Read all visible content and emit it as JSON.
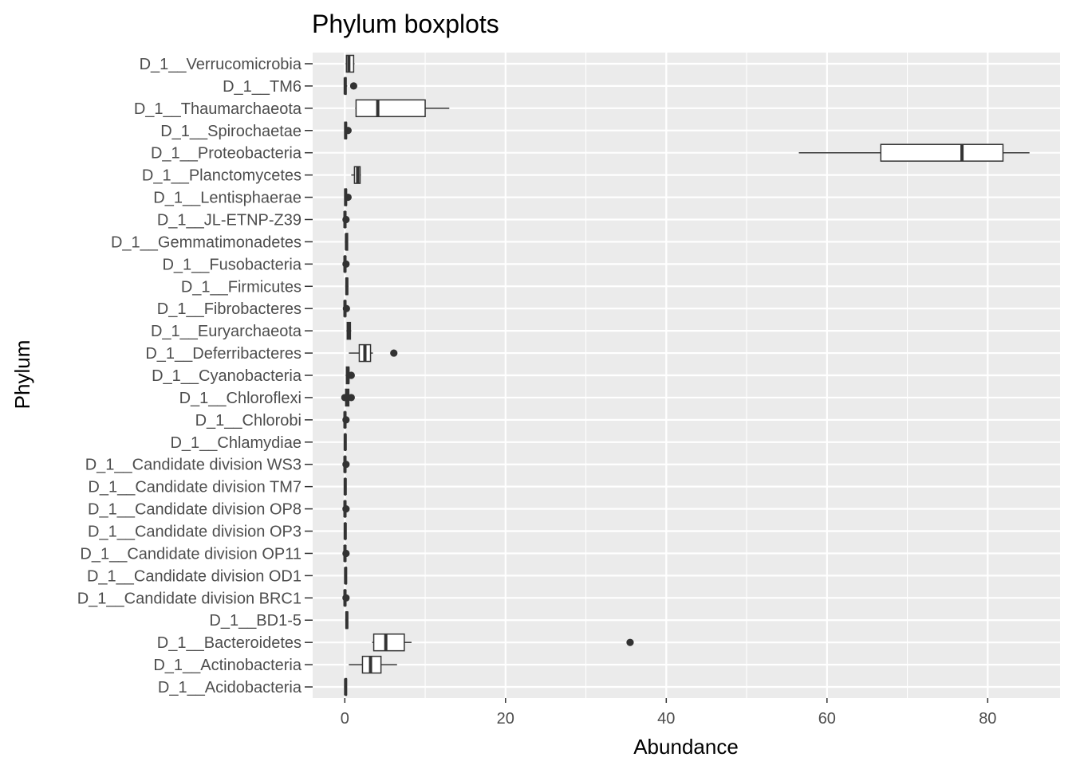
{
  "chart_data": {
    "type": "boxplot",
    "orientation": "horizontal",
    "title": "Phylum boxplots",
    "xlabel": "Abundance",
    "ylabel": "Phylum",
    "xlim": [
      -4,
      89
    ],
    "x_ticks": [
      0,
      20,
      40,
      60,
      80
    ],
    "grid": true,
    "colors": {
      "panel": "#ebebeb",
      "grid": "#ffffff",
      "box_stroke": "#333333",
      "box_fill": "#ffffff",
      "tick_text": "#4d4d4d"
    },
    "categories": [
      {
        "name": "D_1__Verrucomicrobia",
        "min": 0.1,
        "q1": 0.2,
        "median": 0.5,
        "q3": 1.1,
        "max": 1.2,
        "outliers": []
      },
      {
        "name": "D_1__TM6",
        "min": 0,
        "q1": 0,
        "median": 0.05,
        "q3": 0.15,
        "max": 0.3,
        "outliers": [
          1.1
        ]
      },
      {
        "name": "D_1__Thaumarchaeota",
        "min": 1.3,
        "q1": 1.4,
        "median": 4.1,
        "q3": 10.0,
        "max": 13.0,
        "outliers": []
      },
      {
        "name": "D_1__Spirochaetae",
        "min": 0,
        "q1": 0,
        "median": 0.1,
        "q3": 0.2,
        "max": 0.3,
        "outliers": [
          0.4
        ]
      },
      {
        "name": "D_1__Proteobacteria",
        "min": 56.5,
        "q1": 66.7,
        "median": 76.8,
        "q3": 81.9,
        "max": 85.2,
        "outliers": []
      },
      {
        "name": "D_1__Planctomycetes",
        "min": 0.8,
        "q1": 1.2,
        "median": 1.6,
        "q3": 1.9,
        "max": 2.0,
        "outliers": []
      },
      {
        "name": "D_1__Lentisphaerae",
        "min": 0,
        "q1": 0,
        "median": 0.1,
        "q3": 0.2,
        "max": 0.3,
        "outliers": [
          0.4
        ]
      },
      {
        "name": "D_1__JL-ETNP-Z39",
        "min": 0,
        "q1": 0,
        "median": 0.02,
        "q3": 0.05,
        "max": 0.1,
        "outliers": [
          0.15
        ]
      },
      {
        "name": "D_1__Gemmatimonadetes",
        "min": 0.1,
        "q1": 0.15,
        "median": 0.2,
        "q3": 0.35,
        "max": 0.4,
        "outliers": []
      },
      {
        "name": "D_1__Fusobacteria",
        "min": 0,
        "q1": 0,
        "median": 0.02,
        "q3": 0.05,
        "max": 0.1,
        "outliers": [
          0.15
        ]
      },
      {
        "name": "D_1__Firmicutes",
        "min": 0.1,
        "q1": 0.15,
        "median": 0.25,
        "q3": 0.35,
        "max": 0.45,
        "outliers": []
      },
      {
        "name": "D_1__Fibrobacteres",
        "min": 0,
        "q1": 0,
        "median": 0.02,
        "q3": 0.05,
        "max": 0.1,
        "outliers": [
          0.2
        ]
      },
      {
        "name": "D_1__Euryarchaeota",
        "min": 0.2,
        "q1": 0.3,
        "median": 0.5,
        "q3": 0.7,
        "max": 0.8,
        "outliers": []
      },
      {
        "name": "D_1__Deferribacteres",
        "min": 0.5,
        "q1": 1.8,
        "median": 2.5,
        "q3": 3.2,
        "max": 3.5,
        "outliers": [
          6.1
        ]
      },
      {
        "name": "D_1__Cyanobacteria",
        "min": 0.1,
        "q1": 0.2,
        "median": 0.4,
        "q3": 0.5,
        "max": 0.6,
        "outliers": [
          0.8
        ]
      },
      {
        "name": "D_1__Chloroflexi",
        "min": 0,
        "q1": 0.1,
        "median": 0.3,
        "q3": 0.5,
        "max": 0.6,
        "outliers": [
          0.0,
          0.8
        ]
      },
      {
        "name": "D_1__Chlorobi",
        "min": 0,
        "q1": 0,
        "median": 0.02,
        "q3": 0.05,
        "max": 0.1,
        "outliers": [
          0.15
        ]
      },
      {
        "name": "D_1__Chlamydiae",
        "min": 0,
        "q1": 0,
        "median": 0.05,
        "q3": 0.1,
        "max": 0.15,
        "outliers": []
      },
      {
        "name": "D_1__Candidate division WS3",
        "min": 0,
        "q1": 0,
        "median": 0.02,
        "q3": 0.05,
        "max": 0.1,
        "outliers": [
          0.15
        ]
      },
      {
        "name": "D_1__Candidate division TM7",
        "min": 0,
        "q1": 0,
        "median": 0.05,
        "q3": 0.1,
        "max": 0.15,
        "outliers": []
      },
      {
        "name": "D_1__Candidate division OP8",
        "min": 0,
        "q1": 0,
        "median": 0.02,
        "q3": 0.05,
        "max": 0.1,
        "outliers": [
          0.15
        ]
      },
      {
        "name": "D_1__Candidate division OP3",
        "min": 0,
        "q1": 0,
        "median": 0.05,
        "q3": 0.1,
        "max": 0.15,
        "outliers": []
      },
      {
        "name": "D_1__Candidate division OP11",
        "min": 0,
        "q1": 0,
        "median": 0.02,
        "q3": 0.05,
        "max": 0.1,
        "outliers": [
          0.15
        ]
      },
      {
        "name": "D_1__Candidate division OD1",
        "min": 0,
        "q1": 0.05,
        "median": 0.1,
        "q3": 0.2,
        "max": 0.25,
        "outliers": []
      },
      {
        "name": "D_1__Candidate division BRC1",
        "min": 0,
        "q1": 0,
        "median": 0.02,
        "q3": 0.05,
        "max": 0.1,
        "outliers": [
          0.15
        ]
      },
      {
        "name": "D_1__BD1-5",
        "min": 0.1,
        "q1": 0.15,
        "median": 0.25,
        "q3": 0.35,
        "max": 0.4,
        "outliers": []
      },
      {
        "name": "D_1__Bacteroidetes",
        "min": 3.4,
        "q1": 3.6,
        "median": 5.1,
        "q3": 7.4,
        "max": 8.3,
        "outliers": [
          35.5
        ]
      },
      {
        "name": "D_1__Actinobacteria",
        "min": 0.5,
        "q1": 2.2,
        "median": 3.2,
        "q3": 4.5,
        "max": 6.5,
        "outliers": []
      },
      {
        "name": "D_1__Acidobacteria",
        "min": 0,
        "q1": 0.05,
        "median": 0.1,
        "q3": 0.2,
        "max": 0.25,
        "outliers": []
      }
    ]
  }
}
